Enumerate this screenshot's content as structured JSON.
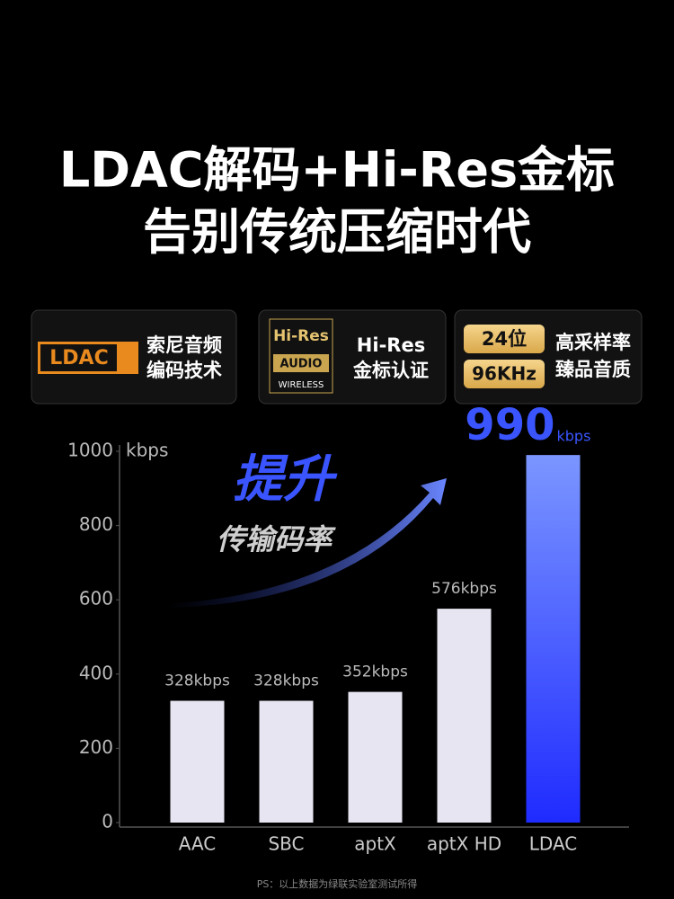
{
  "header": {
    "title_lines": [
      "LDAC解码+Hi-Res金标",
      "告别传统压缩时代"
    ]
  },
  "badges": [
    {
      "logo": [
        "LDAC"
      ],
      "lines": [
        "索尼音频",
        "编码技术"
      ]
    },
    {
      "logo": [
        "Hi-Res",
        "AUDIO",
        "WIRELESS"
      ],
      "lines": [
        "Hi-Res",
        "金标认证"
      ]
    },
    {
      "logo": [
        "24位",
        "96KHz"
      ],
      "lines": [
        "高采样率",
        "臻品音质"
      ]
    }
  ],
  "chart_data": {
    "type": "bar",
    "y_unit": "kbps",
    "annotation": [
      "提升",
      "传输码率"
    ],
    "categories": [
      "AAC",
      "SBC",
      "aptX",
      "aptX HD",
      "LDAC"
    ],
    "values": [
      328,
      328,
      352,
      576,
      990
    ],
    "value_labels": [
      "328kbps",
      "328kbps",
      "352kbps",
      "576kbps",
      "990"
    ],
    "colors": [
      "#e7e5f1",
      "#e7e5f1",
      "#e7e5f1",
      "#e7e5f1",
      "#3a55ff"
    ],
    "ylim": [
      0,
      1000
    ],
    "yticks": [
      0,
      200,
      400,
      600,
      800,
      1000
    ]
  },
  "footnote": "PS：以上数据为绿联实验室测试所得"
}
